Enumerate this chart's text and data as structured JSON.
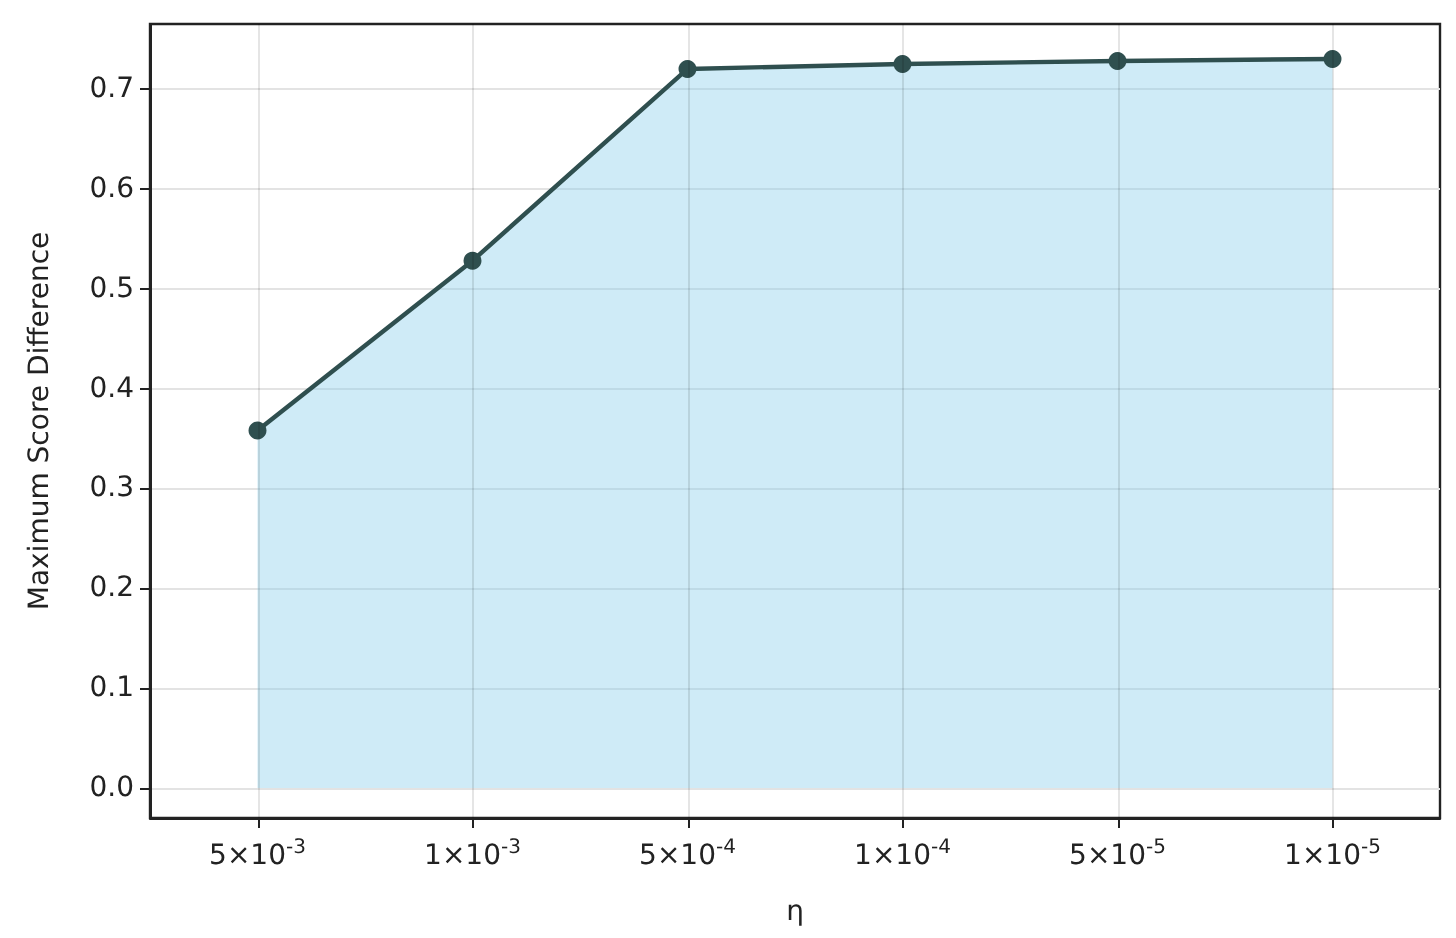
{
  "chart_data": {
    "type": "area",
    "xlabel": "η",
    "ylabel": "Maximum Score Difference",
    "categories": [
      "5×10$^{-3}$",
      "1×10$^{-3}$",
      "5×10$^{-4}$",
      "1×10$^{-4}$",
      "5×10$^{-5}$",
      "1×10$^{-5}$"
    ],
    "series": [
      {
        "color": "#2f4f4f",
        "values": [
          0.358,
          0.528,
          0.72,
          0.725,
          0.728,
          0.73
        ]
      }
    ],
    "ylim": [
      -0.03,
      0.765
    ],
    "yticks": [
      {
        "value": 0,
        "label": "0.0"
      },
      {
        "value": 0.1,
        "label": "0.1"
      },
      {
        "value": 0.2,
        "label": "0.2"
      },
      {
        "value": 0.3,
        "label": "0.3"
      },
      {
        "value": 0.4,
        "label": "0.4"
      },
      {
        "value": 0.5,
        "label": "0.5"
      },
      {
        "value": 0.6,
        "label": "0.6"
      },
      {
        "value": 0.7,
        "label": "0.7"
      }
    ],
    "grid": true,
    "marker": "circle",
    "line_style": "solid"
  }
}
